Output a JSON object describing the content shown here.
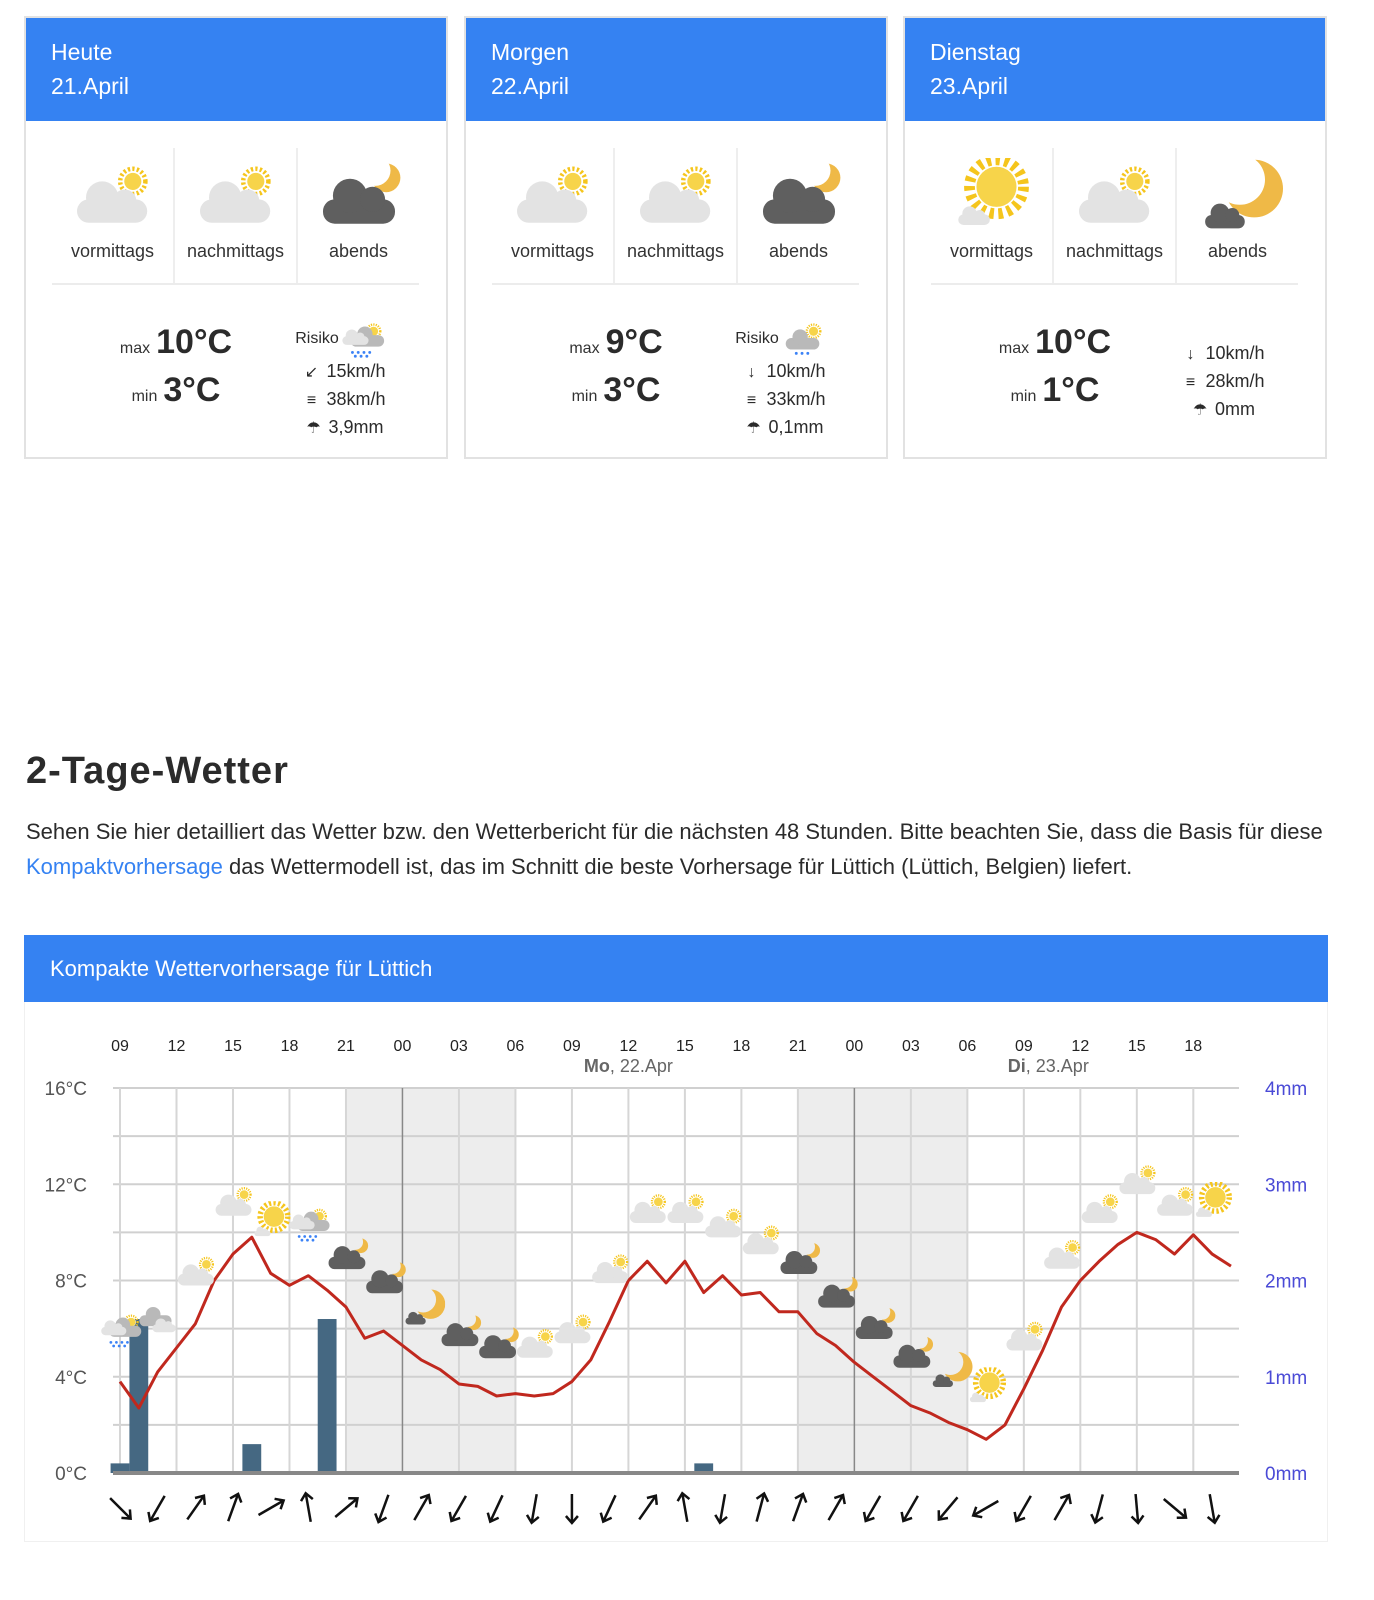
{
  "cards": [
    {
      "day": "Heute",
      "date": "21.April",
      "periods": [
        {
          "label": "vormittags",
          "icon": "partly-cloudy-icon"
        },
        {
          "label": "nachmittags",
          "icon": "partly-cloudy-icon"
        },
        {
          "label": "abends",
          "icon": "night-cloudy-icon"
        }
      ],
      "max_label": "max",
      "max": "10°C",
      "min_label": "min",
      "min": "3°C",
      "risk_label": "Risiko",
      "risk_icon": "rain-partly-icon",
      "wind_dir_icon": "↙",
      "wind": "15km/h",
      "gust": "38km/h",
      "precip": "3,9mm"
    },
    {
      "day": "Morgen",
      "date": "22.April",
      "periods": [
        {
          "label": "vormittags",
          "icon": "partly-cloudy-icon"
        },
        {
          "label": "nachmittags",
          "icon": "partly-cloudy-icon"
        },
        {
          "label": "abends",
          "icon": "night-cloudy-icon"
        }
      ],
      "max_label": "max",
      "max": "9°C",
      "min_label": "min",
      "min": "3°C",
      "risk_label": "Risiko",
      "risk_icon": "light-rain-icon",
      "wind_dir_icon": "↓",
      "wind": "10km/h",
      "gust": "33km/h",
      "precip": "0,1mm"
    },
    {
      "day": "Dienstag",
      "date": "23.April",
      "periods": [
        {
          "label": "vormittags",
          "icon": "sunny-icon"
        },
        {
          "label": "nachmittags",
          "icon": "partly-cloudy-icon"
        },
        {
          "label": "abends",
          "icon": "night-moon-icon"
        }
      ],
      "max_label": "max",
      "max": "10°C",
      "min_label": "min",
      "min": "1°C",
      "risk_label": "",
      "risk_icon": "",
      "wind_dir_icon": "↓",
      "wind": "10km/h",
      "gust": "28km/h",
      "precip": "0mm"
    }
  ],
  "section": {
    "title": "2-Tage-Wetter",
    "intro_before": "Sehen Sie hier detailliert das Wetter bzw. den Wetterbericht für die nächsten 48 Stunden. Bitte beachten Sie, dass die Basis für diese ",
    "intro_link": "Kompaktvorhersage",
    "intro_after": " das Wettermodell ist, das im Schnitt die beste Vorhersage für Lüttich (Lüttich, Belgien) liefert."
  },
  "chart_header": "Kompakte Wettervorhersage für Lüttich",
  "colors": {
    "accent": "#3582f2",
    "temperature": "#c0281e",
    "precip": "#456882",
    "precip_axis": "#4a4ad6",
    "night_shade": "#ededed"
  },
  "chart_data": {
    "type": "line+bar",
    "hour_ticks": [
      "09",
      "12",
      "15",
      "18",
      "21",
      "00",
      "03",
      "06",
      "09",
      "12",
      "15",
      "18",
      "21",
      "00",
      "03",
      "06",
      "09",
      "12",
      "15",
      "18"
    ],
    "day_labels": [
      {
        "weekday": "Mo",
        "date": ", 22.Apr"
      },
      {
        "weekday": "Di",
        "date": ", 23.Apr"
      }
    ],
    "y_left": {
      "unit": "°C",
      "ticks": [
        "16°C",
        "12°C",
        "8°C",
        "4°C",
        "0°C"
      ],
      "range": [
        0,
        16
      ]
    },
    "y_right": {
      "unit": "mm",
      "ticks": [
        "4mm",
        "3mm",
        "2mm",
        "1mm",
        "0mm"
      ],
      "range": [
        0,
        4
      ]
    },
    "grid": true,
    "hours": [
      "09",
      "10",
      "11",
      "12",
      "13",
      "14",
      "15",
      "16",
      "17",
      "18",
      "19",
      "20",
      "21",
      "22",
      "23",
      "00",
      "01",
      "02",
      "03",
      "04",
      "05",
      "06",
      "07",
      "08",
      "09",
      "10",
      "11",
      "12",
      "13",
      "14",
      "15",
      "16",
      "17",
      "18",
      "19",
      "20",
      "21",
      "22",
      "23",
      "00",
      "01",
      "02",
      "03",
      "04",
      "05",
      "06",
      "07",
      "08",
      "09",
      "10",
      "11",
      "12",
      "13",
      "14",
      "15",
      "16",
      "17",
      "18",
      "19",
      "20"
    ],
    "temperature_c": [
      3.8,
      2.7,
      4.2,
      5.2,
      6.2,
      8.0,
      9.1,
      9.8,
      8.3,
      7.8,
      8.2,
      7.6,
      6.9,
      5.6,
      5.9,
      5.3,
      4.7,
      4.3,
      3.7,
      3.6,
      3.2,
      3.3,
      3.2,
      3.3,
      3.8,
      4.7,
      6.3,
      8.0,
      8.8,
      7.9,
      8.8,
      7.5,
      8.2,
      7.4,
      7.5,
      6.7,
      6.7,
      5.8,
      5.3,
      4.6,
      4.0,
      3.4,
      2.8,
      2.5,
      2.1,
      1.8,
      1.4,
      2.0,
      3.5,
      5.1,
      6.9,
      8.0,
      8.8,
      9.5,
      10.0,
      9.7,
      9.1,
      9.9,
      9.1,
      8.6
    ],
    "precip_mm": [
      0.1,
      1.6,
      0,
      0,
      0,
      0,
      0,
      0.3,
      0,
      0,
      0,
      1.6,
      0,
      0,
      0,
      0,
      0,
      0,
      0,
      0,
      0,
      0,
      0,
      0,
      0,
      0,
      0,
      0,
      0,
      0,
      0,
      0.1,
      0,
      0,
      0,
      0,
      0,
      0,
      0,
      0,
      0,
      0,
      0,
      0,
      0,
      0,
      0,
      0,
      0,
      0,
      0,
      0,
      0,
      0,
      0,
      0,
      0,
      0,
      0,
      0
    ],
    "night_periods": [
      [
        "21",
        "06"
      ],
      [
        "21",
        "06"
      ]
    ],
    "weather_icons_2h": [
      "rain-partly",
      "cloudy",
      "partly",
      "partly",
      "sunny",
      "rain-partly",
      "night",
      "night",
      "night-moon",
      "night",
      "night",
      "partly",
      "partly",
      "partly",
      "partly",
      "partly",
      "partly",
      "partly",
      "night",
      "night",
      "night",
      "night",
      "night-moon",
      "sunny",
      "partly",
      "partly",
      "partly",
      "partly",
      "partly",
      "sunny"
    ],
    "wind_direction_deg_2h": [
      135,
      210,
      35,
      20,
      60,
      350,
      50,
      200,
      30,
      210,
      205,
      190,
      180,
      205,
      35,
      350,
      190,
      15,
      20,
      30,
      210,
      210,
      220,
      240,
      210,
      30,
      195,
      175,
      130,
      170
    ]
  }
}
